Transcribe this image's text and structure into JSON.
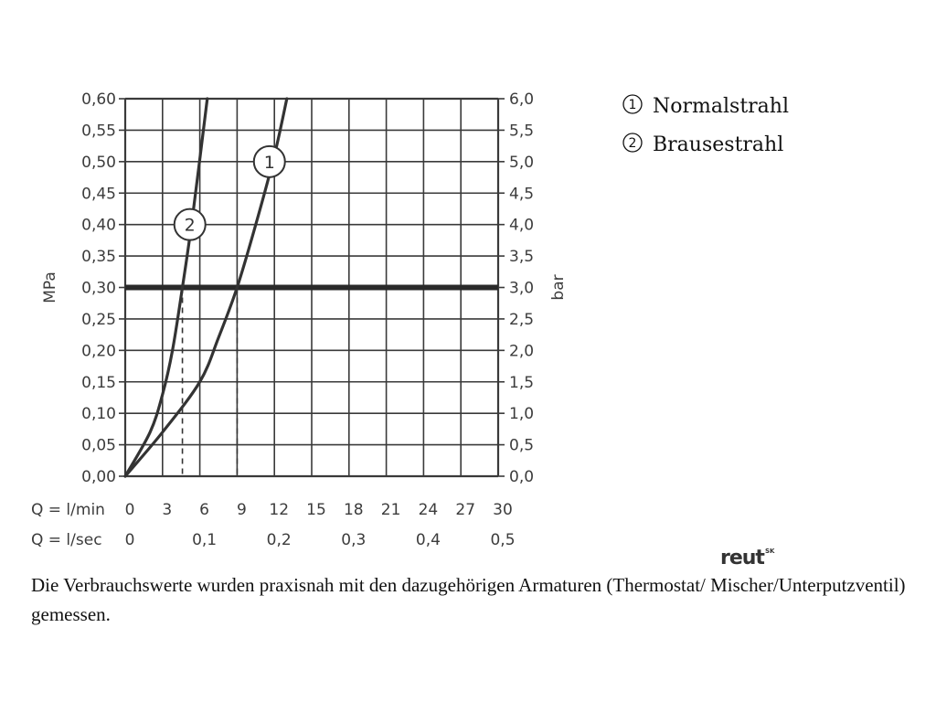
{
  "chart_data": {
    "type": "line",
    "left_axis": {
      "label": "MPa",
      "range": [
        0,
        0.6
      ],
      "ticks": [
        "0,00",
        "0,05",
        "0,10",
        "0,15",
        "0,20",
        "0,25",
        "0,30",
        "0,35",
        "0,40",
        "0,45",
        "0,50",
        "0,55",
        "0,60"
      ]
    },
    "right_axis": {
      "label": "bar",
      "range": [
        0,
        6
      ],
      "ticks": [
        "0,0",
        "0,5",
        "1,0",
        "1,5",
        "2,0",
        "2,5",
        "3,0",
        "3,5",
        "4,0",
        "4,5",
        "5,0",
        "5,5",
        "6,0"
      ]
    },
    "x_axis_lmin": {
      "label": "Q = l/min",
      "range": [
        0,
        30
      ],
      "ticks": [
        "0",
        "3",
        "6",
        "9",
        "12",
        "15",
        "18",
        "21",
        "24",
        "27",
        "30"
      ]
    },
    "x_axis_lsec": {
      "label": "Q = l/sec",
      "ticks": [
        "0",
        "0,1",
        "0,2",
        "0,3",
        "0,4",
        "0,5"
      ],
      "tick_positions_lmin": [
        0,
        6,
        12,
        18,
        24,
        30
      ]
    },
    "grid": true,
    "reference_line": {
      "y_mpa": 0.3
    },
    "series": [
      {
        "name": "1",
        "x": [
          0,
          3,
          6,
          7.5,
          9,
          10.5,
          12,
          13
        ],
        "y": [
          0,
          0.07,
          0.15,
          0.22,
          0.3,
          0.4,
          0.51,
          0.6
        ],
        "marker_at": [
          11.6,
          0.5
        ],
        "dashed_drop_at_x": 9
      },
      {
        "name": "2",
        "x": [
          0,
          2,
          3,
          3.8,
          4.6,
          5.4,
          6.6
        ],
        "y": [
          0,
          0.07,
          0.13,
          0.2,
          0.3,
          0.41,
          0.6
        ],
        "marker_at": [
          5.2,
          0.4
        ],
        "dashed_drop_at_x": 4.6
      }
    ]
  },
  "legend": [
    {
      "number": "1",
      "label": "Normalstrahl"
    },
    {
      "number": "2",
      "label": "Brausestrahl"
    }
  ],
  "logo": {
    "text": "reut",
    "superscript": "SK"
  },
  "footnote": "Die Verbrauchswerte wurden praxisnah mit den dazugehörigen Armaturen (Thermostat/ Mischer/Unterputzventil) gemessen."
}
